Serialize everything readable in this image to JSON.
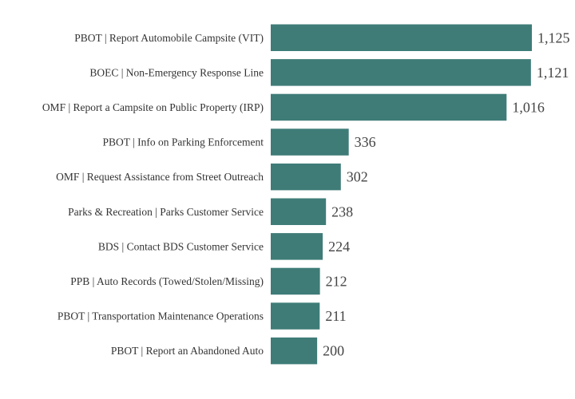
{
  "chart_data": {
    "type": "bar",
    "orientation": "horizontal",
    "categories": [
      "PBOT | Report Automobile Campsite (VIT)",
      "BOEC | Non-Emergency Response Line",
      "OMF | Report a Campsite on Public Property (IRP)",
      "PBOT | Info on Parking Enforcement",
      "OMF | Request Assistance from Street Outreach",
      "Parks & Recreation | Parks Customer Service",
      "BDS | Contact BDS Customer Service",
      "PPB | Auto Records (Towed/Stolen/Missing)",
      "PBOT | Transportation Maintenance Operations",
      "PBOT | Report an Abandoned Auto"
    ],
    "values": [
      1125,
      1121,
      1016,
      336,
      302,
      238,
      224,
      212,
      211,
      200
    ],
    "value_labels": [
      "1,125",
      "1,121",
      "1,016",
      "336",
      "302",
      "238",
      "224",
      "212",
      "211",
      "200"
    ],
    "title": "",
    "xlabel": "",
    "ylabel": "",
    "xlim": [
      0,
      1125
    ],
    "grid": false,
    "bar_color": "#3f7c78"
  }
}
